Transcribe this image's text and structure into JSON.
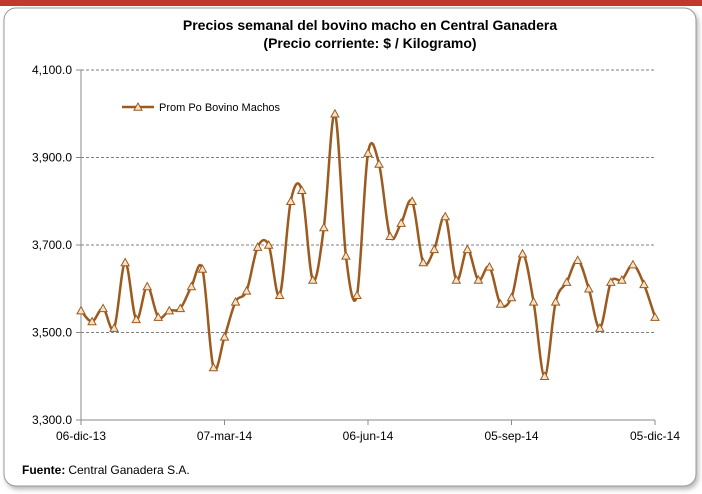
{
  "chart_data": {
    "type": "line",
    "title": "Precios semanal del bovino  macho en Central Ganadera",
    "subtitle": "(Precio corriente: $ / Kilogramo)",
    "source_label": "Fuente:",
    "source": "Central Ganadera S.A.",
    "categories": [
      "06-dic-13",
      null,
      null,
      null,
      null,
      null,
      null,
      null,
      null,
      null,
      null,
      null,
      null,
      "07-mar-14",
      null,
      null,
      null,
      null,
      null,
      null,
      null,
      null,
      null,
      null,
      null,
      null,
      "06-jun-14",
      null,
      null,
      null,
      null,
      null,
      null,
      null,
      null,
      null,
      null,
      null,
      null,
      "05-sep-14",
      null,
      null,
      null,
      null,
      null,
      null,
      null,
      null,
      null,
      null,
      null,
      null,
      "05-dic-14"
    ],
    "series": [
      {
        "name": "Prom Po Bovino Machos",
        "color": "#9c5a1e",
        "values": [
          3550,
          3525,
          3555,
          3510,
          3660,
          3530,
          3605,
          3535,
          3550,
          3555,
          3605,
          3645,
          3420,
          3490,
          3570,
          3595,
          3695,
          3700,
          3585,
          3800,
          3825,
          3620,
          3740,
          4000,
          3675,
          3585,
          3910,
          3885,
          3720,
          3750,
          3800,
          3660,
          3690,
          3765,
          3620,
          3690,
          3620,
          3650,
          3565,
          3580,
          3680,
          3570,
          3400,
          3570,
          3615,
          3665,
          3600,
          3510,
          3615,
          3620,
          3655,
          3610,
          3535
        ]
      }
    ],
    "ylim": [
      3300,
      4100
    ],
    "yticks": [
      {
        "value": 3300,
        "label": "3,300.0"
      },
      {
        "value": 3500,
        "label": "3,500.0"
      },
      {
        "value": 3700,
        "label": "3,700.0"
      },
      {
        "value": 3900,
        "label": "3,900.0"
      },
      {
        "value": 4100,
        "label": "4,100.0"
      }
    ],
    "grid": true,
    "legend": "upper left"
  }
}
